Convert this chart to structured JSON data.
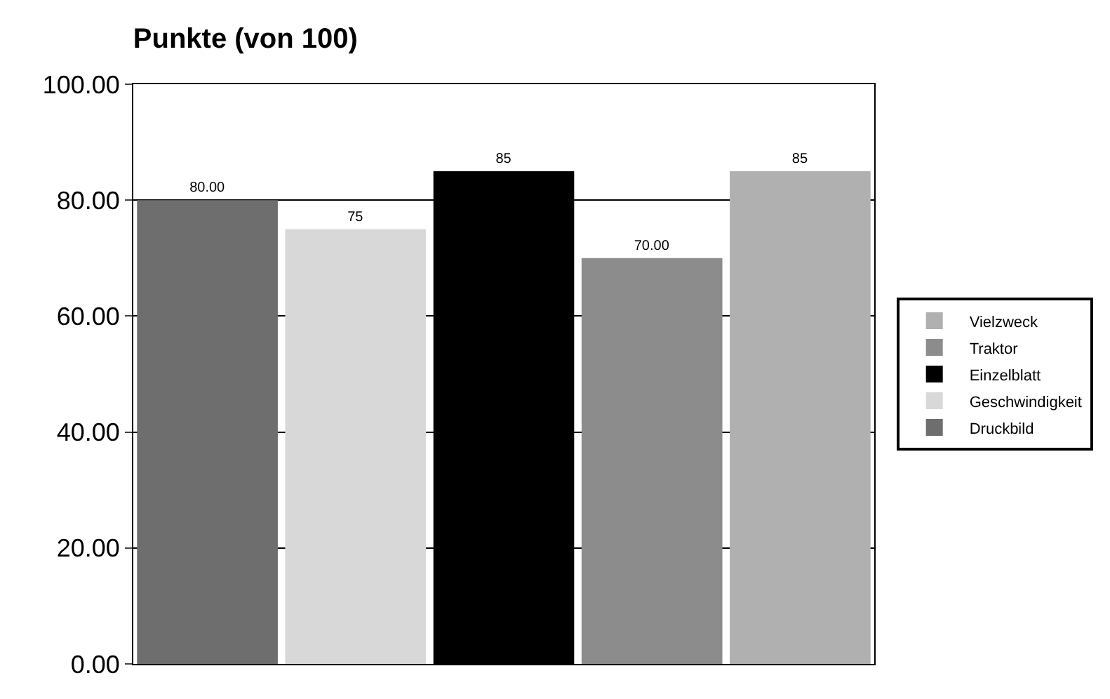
{
  "chart_data": {
    "type": "bar",
    "title": "Punkte (von 100)",
    "categories": [
      null,
      null,
      null,
      null,
      null
    ],
    "series": [
      {
        "name": "Vielzweck",
        "color": "#b0b0b0",
        "values": [
          null,
          null,
          null,
          null,
          85
        ],
        "value_labels": [
          null,
          null,
          null,
          null,
          "85"
        ]
      },
      {
        "name": "Traktor",
        "color": "#8c8c8c",
        "values": [
          null,
          null,
          null,
          70,
          null
        ],
        "value_labels": [
          null,
          null,
          null,
          "70.00",
          null
        ]
      },
      {
        "name": "Einzelblatt",
        "color": "#000000",
        "values": [
          null,
          null,
          85,
          null,
          null
        ],
        "value_labels": [
          null,
          null,
          "85",
          null,
          null
        ]
      },
      {
        "name": "Geschwindigkeit",
        "color": "#d8d8d8",
        "values": [
          null,
          75,
          null,
          null,
          null
        ],
        "value_labels": [
          null,
          "75",
          null,
          null,
          null
        ]
      },
      {
        "name": "Druckbild",
        "color": "#6e6e6e",
        "values": [
          80,
          null,
          null,
          null,
          null
        ],
        "value_labels": [
          "80.00",
          null,
          null,
          null,
          null
        ]
      }
    ],
    "ylim": [
      0,
      100
    ],
    "yticks": [
      {
        "value": 0,
        "label": "0.00"
      },
      {
        "value": 20,
        "label": "20.00"
      },
      {
        "value": 40,
        "label": "40.00"
      },
      {
        "value": 60,
        "label": "60.00"
      },
      {
        "value": 80,
        "label": "80.00"
      },
      {
        "value": 100,
        "label": "100.00"
      }
    ],
    "grid": "y",
    "legend": "right"
  }
}
